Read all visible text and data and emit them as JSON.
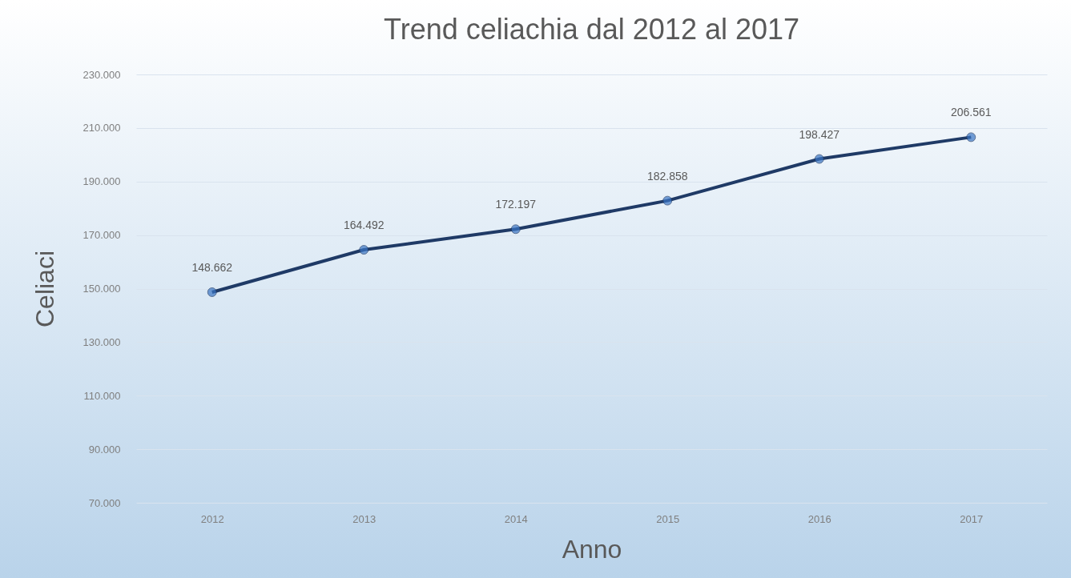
{
  "chart_data": {
    "type": "line",
    "title": "Trend celiachia dal 2012 al 2017",
    "xlabel": "Anno",
    "ylabel": "Celiaci",
    "categories": [
      "2012",
      "2013",
      "2014",
      "2015",
      "2016",
      "2017"
    ],
    "series": [
      {
        "color": "#1f3a66",
        "values": [
          148662,
          164492,
          172197,
          182858,
          198427,
          206561
        ],
        "value_labels": [
          "148.662",
          "164.492",
          "172.197",
          "182.858",
          "198.427",
          "206.561"
        ]
      }
    ],
    "ylim": [
      70000,
      230000
    ],
    "yticks": [
      {
        "value": 70000,
        "label": "70.000"
      },
      {
        "value": 90000,
        "label": "90.000"
      },
      {
        "value": 110000,
        "label": "110.000"
      },
      {
        "value": 130000,
        "label": "130.000"
      },
      {
        "value": 150000,
        "label": "150.000"
      },
      {
        "value": 170000,
        "label": "170.000"
      },
      {
        "value": 190000,
        "label": "190.000"
      },
      {
        "value": 210000,
        "label": "210.000"
      },
      {
        "value": 230000,
        "label": "230.000"
      }
    ],
    "grid": "y",
    "marker": "circle",
    "line_style": "solid"
  }
}
